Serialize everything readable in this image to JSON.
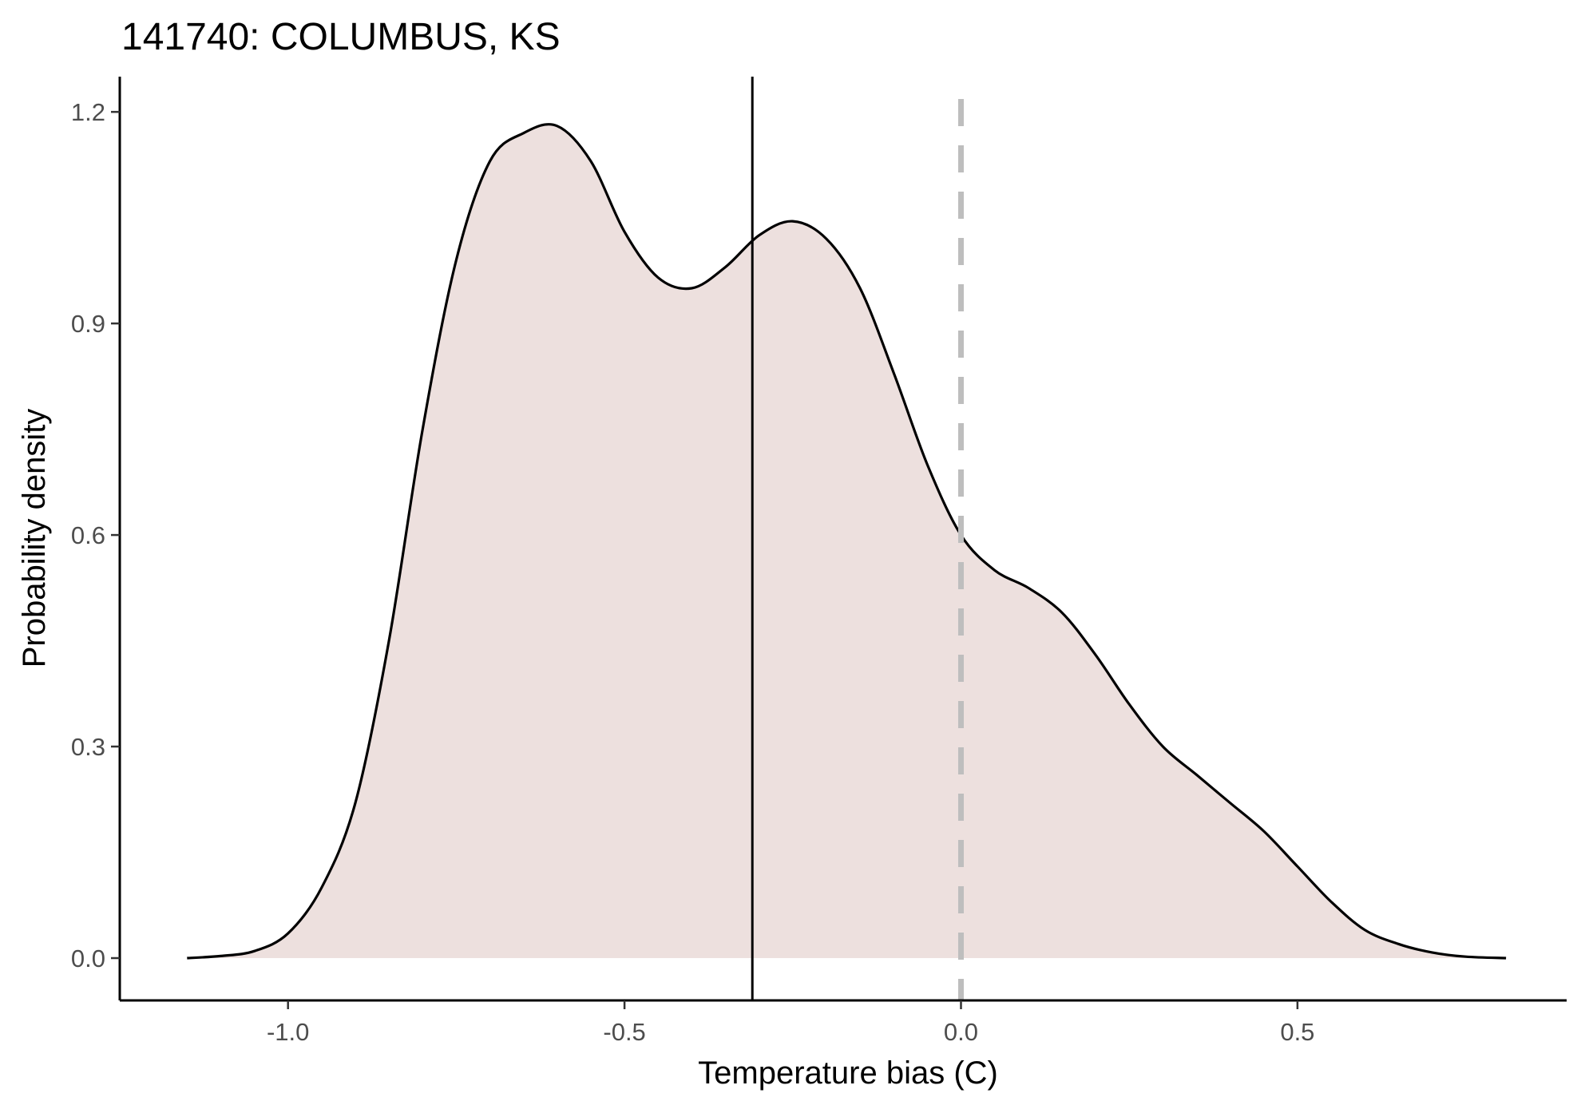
{
  "chart_data": {
    "type": "area",
    "title": "141740: COLUMBUS, KS",
    "xlabel": "Temperature bias (C)",
    "ylabel": "Probability density",
    "xlim": [
      -1.25,
      0.9
    ],
    "ylim": [
      -0.06,
      1.25
    ],
    "x_ticks": [
      -1.0,
      -0.5,
      0.0,
      0.5
    ],
    "x_tick_labels": [
      "-1.0",
      "-0.5",
      "0.0",
      "0.5"
    ],
    "y_ticks": [
      0.0,
      0.3,
      0.6,
      0.9,
      1.2
    ],
    "y_tick_labels": [
      "0.0",
      "0.3",
      "0.6",
      "0.9",
      "1.2"
    ],
    "grid": false,
    "fill_color": "#ede0de",
    "line_color": "#000000",
    "reference_lines": [
      {
        "x": -0.31,
        "style": "solid",
        "color": "#000000"
      },
      {
        "x": 0.0,
        "style": "dashed",
        "color": "#bebebe"
      }
    ],
    "series": [
      {
        "x": [
          -1.15,
          -1.1,
          -1.05,
          -1.0,
          -0.95,
          -0.9,
          -0.85,
          -0.8,
          -0.75,
          -0.7,
          -0.65,
          -0.6,
          -0.55,
          -0.5,
          -0.45,
          -0.4,
          -0.35,
          -0.3,
          -0.25,
          -0.2,
          -0.15,
          -0.1,
          -0.05,
          0.0,
          0.05,
          0.1,
          0.15,
          0.2,
          0.25,
          0.3,
          0.35,
          0.4,
          0.45,
          0.5,
          0.55,
          0.6,
          0.65,
          0.7,
          0.75,
          0.81
        ],
        "y": [
          0.0,
          0.003,
          0.01,
          0.035,
          0.1,
          0.22,
          0.45,
          0.75,
          0.99,
          1.13,
          1.17,
          1.18,
          1.13,
          1.03,
          0.965,
          0.95,
          0.98,
          1.025,
          1.045,
          1.02,
          0.95,
          0.83,
          0.7,
          0.6,
          0.55,
          0.525,
          0.49,
          0.43,
          0.36,
          0.3,
          0.26,
          0.22,
          0.18,
          0.13,
          0.08,
          0.04,
          0.02,
          0.008,
          0.002,
          0.0
        ]
      }
    ]
  }
}
